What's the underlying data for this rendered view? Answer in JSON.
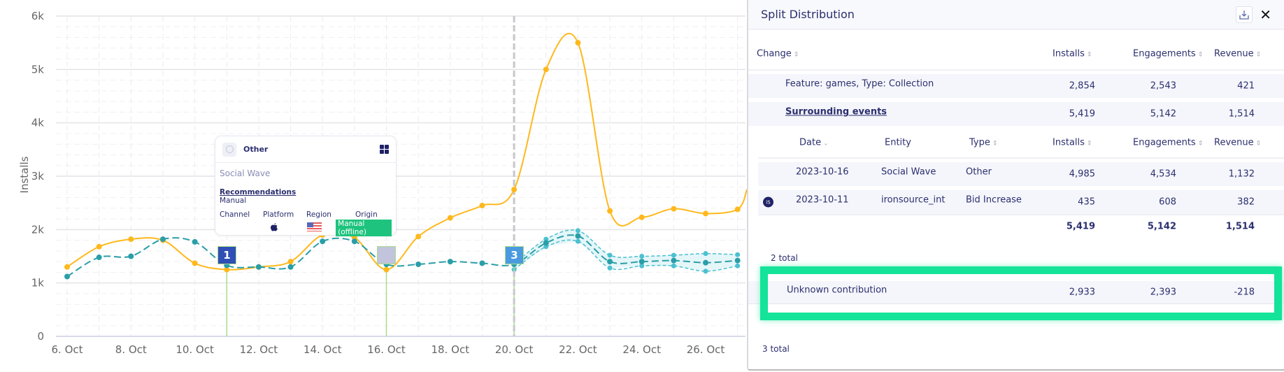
{
  "chart_data": {
    "type": "line",
    "ylabel": "Installs",
    "ylim": [
      0,
      6000
    ],
    "yticks": [
      "0",
      "1k",
      "2k",
      "3k",
      "4k",
      "5k",
      "6k"
    ],
    "xticks": [
      "6. Oct",
      "8. Oct",
      "10. Oct",
      "12. Oct",
      "14. Oct",
      "16. Oct",
      "18. Oct",
      "20. Oct",
      "22. Oct",
      "24. Oct",
      "26. Oct"
    ],
    "x_days": [
      6,
      7,
      8,
      9,
      10,
      11,
      12,
      13,
      14,
      15,
      16,
      17,
      18,
      19,
      20,
      21,
      22,
      23,
      24,
      25,
      26,
      27
    ],
    "series": [
      {
        "name": "actual",
        "color": "#ffb81c",
        "values": [
          1300,
          1680,
          1820,
          1800,
          1370,
          1250,
          1300,
          1400,
          1900,
          1850,
          1250,
          1870,
          2220,
          2450,
          2750,
          5000,
          5500,
          2350,
          2230,
          2390,
          2300,
          2380
        ]
      },
      {
        "name": "baseline",
        "color": "#2a9ea8",
        "values": [
          1120,
          1480,
          1500,
          1820,
          1770,
          1330,
          1300,
          1300,
          1780,
          1780,
          1350,
          1350,
          1400,
          1370,
          1350,
          1750,
          1880,
          1400,
          1400,
          1420,
          1380,
          1420
        ]
      }
    ],
    "forecast_band": {
      "days": [
        20,
        21,
        22,
        23,
        24,
        25,
        26,
        27
      ],
      "upper": [
        1350,
        1820,
        1980,
        1520,
        1500,
        1520,
        1550,
        1530
      ],
      "lower": [
        1250,
        1680,
        1780,
        1280,
        1320,
        1320,
        1220,
        1320
      ]
    },
    "current_day": 20,
    "events": [
      {
        "day": 11,
        "label": "1",
        "color": "#2f4fb5"
      },
      {
        "day": 16,
        "label": "",
        "color": "#c2c3dc"
      },
      {
        "day": 20,
        "label": "3",
        "color": "#4a9ae0"
      }
    ]
  },
  "tooltip": {
    "type": "Other",
    "entity": "Social Wave",
    "link": "Recommendations",
    "method": "Manual",
    "labels": [
      "Channel",
      "Platform",
      "Region",
      "Origin"
    ],
    "origin": "Manual (offline)"
  },
  "panel": {
    "title": "Split Distribution",
    "headers": {
      "change": "Change",
      "installs": "Installs",
      "engagements": "Engagements",
      "revenue": "Revenue"
    },
    "rows": [
      {
        "label": "Feature: games, Type: Collection",
        "installs": "2,854",
        "engagements": "2,543",
        "revenue": "421"
      },
      {
        "label": "Surrounding events",
        "installs": "5,419",
        "engagements": "5,142",
        "revenue": "1,514"
      }
    ],
    "sub_headers": {
      "date": "Date",
      "entity": "Entity",
      "type": "Type",
      "installs": "Installs",
      "engagements": "Engagements",
      "revenue": "Revenue"
    },
    "sub_rows": [
      {
        "date": "2023-10-16",
        "entity": "Social Wave",
        "type": "Other",
        "installs": "4,985",
        "engagements": "4,534",
        "revenue": "1,132"
      },
      {
        "date": "2023-10-11",
        "entity": "ironsource_int",
        "type": "Bid Increase",
        "installs": "435",
        "engagements": "608",
        "revenue": "382",
        "icon": "iS"
      }
    ],
    "sub_totals": {
      "installs": "5,419",
      "engagements": "5,142",
      "revenue": "1,514"
    },
    "sub_count": "2 total",
    "unknown": {
      "label": "Unknown contribution",
      "installs": "2,933",
      "engagements": "2,393",
      "revenue": "-218"
    },
    "count": "3 total"
  }
}
